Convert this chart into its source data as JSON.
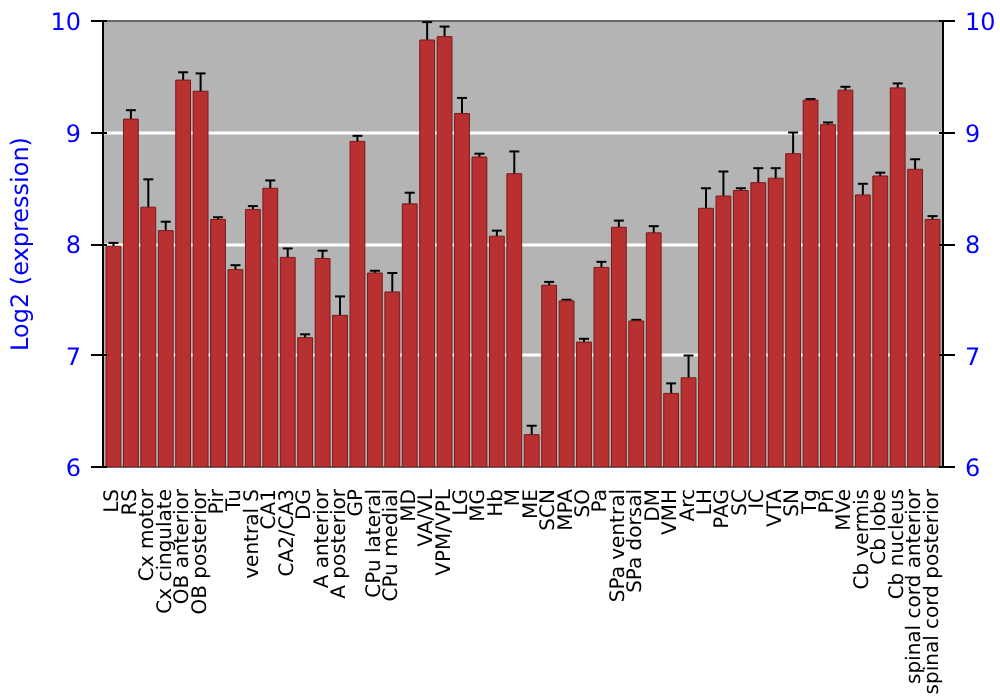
{
  "chart_data": {
    "type": "bar",
    "ylabel": "Log2 (expression)",
    "categories": [
      "LS",
      "RS",
      "Cx motor",
      "Cx cingulate",
      "OB anterior",
      "OB posterior",
      "Pir",
      "Tu",
      "ventral S",
      "CA1",
      "CA2/CA3",
      "DG",
      "A anterior",
      "A posterior",
      "GP",
      "CPu lateral",
      "CPu medial",
      "MD",
      "VA/VL",
      "VPM/VPL",
      "LG",
      "MG",
      "Hb",
      "M",
      "ME",
      "SCN",
      "MPA",
      "SO",
      "Pa",
      "SPa ventral",
      "SPa dorsal",
      "DM",
      "VMH",
      "Arc",
      "LH",
      "PAG",
      "SC",
      "IC",
      "VTA",
      "SN",
      "Tg",
      "Pn",
      "MVe",
      "Cb vermis",
      "Cb lobe",
      "Cb nucleus",
      "spinal cord anterior",
      "spinal cord posterior"
    ],
    "values": [
      7.98,
      9.12,
      8.33,
      8.12,
      9.47,
      9.37,
      8.22,
      7.77,
      8.31,
      8.5,
      7.88,
      7.16,
      7.87,
      7.36,
      8.92,
      7.74,
      7.57,
      8.36,
      9.83,
      9.86,
      9.17,
      8.78,
      8.07,
      8.63,
      6.29,
      7.63,
      7.49,
      7.12,
      7.79,
      8.15,
      7.31,
      8.1,
      6.66,
      6.8,
      8.32,
      8.43,
      8.48,
      8.55,
      8.59,
      8.81,
      9.29,
      9.07,
      9.38,
      8.44,
      8.61,
      9.4,
      8.67,
      8.22
    ],
    "errors": [
      0.03,
      0.08,
      0.25,
      0.08,
      0.07,
      0.16,
      0.02,
      0.04,
      0.03,
      0.07,
      0.08,
      0.03,
      0.07,
      0.17,
      0.05,
      0.02,
      0.17,
      0.1,
      0.16,
      0.09,
      0.14,
      0.03,
      0.05,
      0.2,
      0.08,
      0.03,
      0.01,
      0.03,
      0.05,
      0.06,
      0.01,
      0.06,
      0.09,
      0.2,
      0.18,
      0.22,
      0.02,
      0.13,
      0.09,
      0.19,
      0.01,
      0.02,
      0.03,
      0.1,
      0.03,
      0.04,
      0.09,
      0.03
    ],
    "color": "#b83030",
    "ylim": [
      6,
      10
    ],
    "yticks": [
      6,
      7,
      8,
      9,
      10
    ],
    "y2lim": [
      6,
      10
    ],
    "y2ticks": [
      6,
      7,
      8,
      9,
      10
    ],
    "grid": "y"
  }
}
